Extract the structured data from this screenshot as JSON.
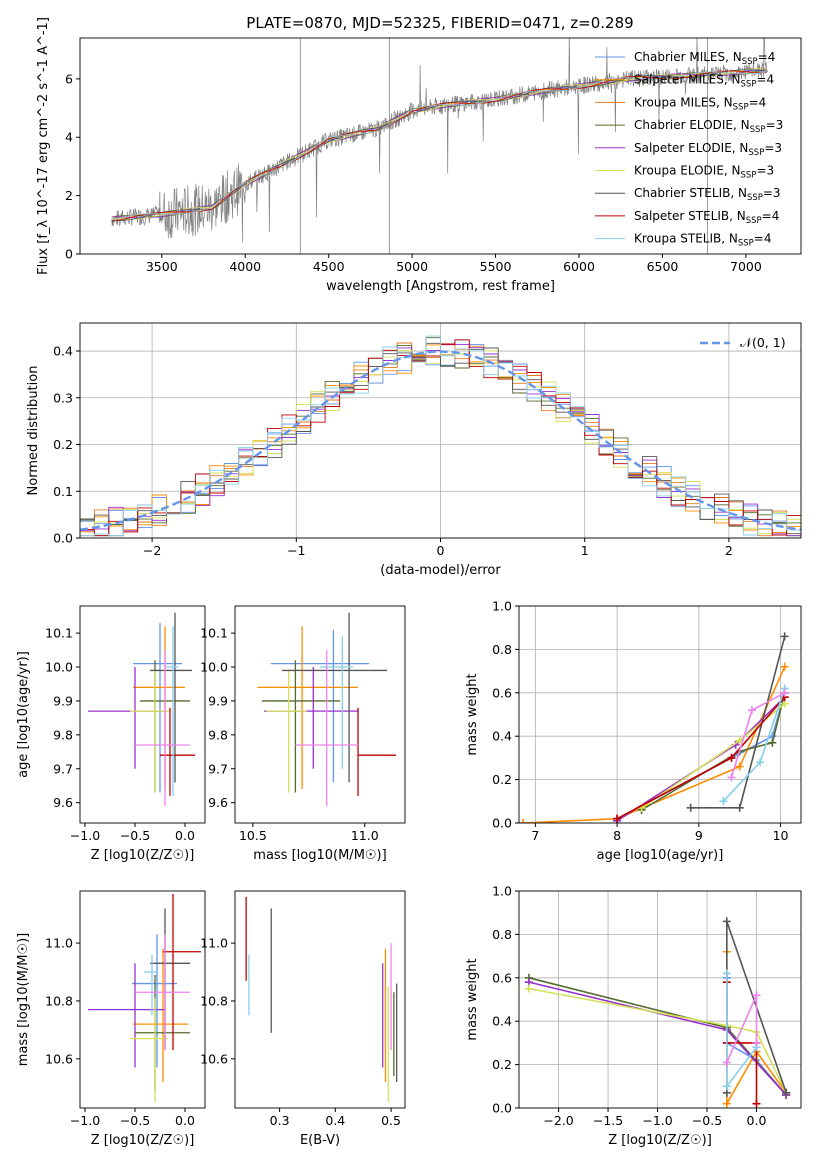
{
  "figure_title": "PLATE=0870, MJD=52325, FIBERID=0471, z=0.289",
  "colors": {
    "Chabrier MILES": "#6495ed",
    "Salpeter MILES": "#ff8c00",
    "Kroupa MILES": "#e07b22",
    "Chabrier ELODIE": "#556b2f",
    "Salpeter ELODIE": "#9932cc",
    "Kroupa ELODIE": "#d4e157",
    "Chabrier STELIB": "#555555",
    "Salpeter STELIB": "#c00000",
    "Kroupa STELIB": "#87ceeb",
    "pink": "#ee82ee",
    "data": "#808080",
    "gauss": "#6495ed"
  },
  "chart_data": [
    {
      "type": "line",
      "title": "PLATE=0870, MJD=52325, FIBERID=0471, z=0.289",
      "xlabel": "wavelength [Angstrom, rest frame]",
      "ylabel": "Flux [f_λ 10^-17 erg cm^-2 s^-1 A^-1]",
      "xlim": [
        3010,
        7330
      ],
      "ylim": [
        0,
        7.4
      ],
      "xticks": [
        3500,
        4000,
        4500,
        5000,
        5500,
        6000,
        6500,
        7000
      ],
      "yticks": [
        0,
        2,
        4,
        6
      ],
      "legend_position": "top-right",
      "legend": [
        "Chabrier MILES, N_SSP=4",
        "Salpeter MILES, N_SSP=4",
        "Kroupa MILES, N_SSP=4",
        "Chabrier ELODIE, N_SSP=3",
        "Salpeter ELODIE, N_SSP=3",
        "Kroupa ELODIE, N_SSP=3",
        "Chabrier STELIB, N_SSP=3",
        "Salpeter STELIB, N_SSP=4",
        "Kroupa STELIB, N_SSP=4"
      ],
      "continuum": {
        "x": [
          3200,
          3500,
          3800,
          4000,
          4200,
          4500,
          4800,
          5000,
          5200,
          5500,
          5800,
          6000,
          6300,
          6600,
          6900,
          7130
        ],
        "y": [
          1.2,
          1.35,
          1.6,
          2.4,
          3.0,
          3.9,
          4.3,
          4.9,
          5.1,
          5.3,
          5.6,
          5.75,
          6.0,
          6.1,
          6.2,
          6.3
        ]
      }
    },
    {
      "type": "bar",
      "xlabel": "(data-model)/error",
      "ylabel": "Normed distribution",
      "xlim": [
        -2.5,
        2.5
      ],
      "ylim": [
        0,
        0.46
      ],
      "xticks": [
        -2,
        -1,
        0,
        1,
        2
      ],
      "yticks": [
        0.0,
        0.1,
        0.2,
        0.3,
        0.4
      ],
      "legend": [
        "𝒩(0, 1)"
      ],
      "gaussian": {
        "mean": 0,
        "sigma": 1
      }
    },
    {
      "type": "scatter",
      "xlabel": "Z [log10(Z/Z☉)]",
      "ylabel": "age  [log10(age/yr)]",
      "xlim": [
        -1.05,
        0.2
      ],
      "ylim": [
        9.54,
        10.18
      ],
      "xticks": [
        -1.0,
        -0.5,
        0.0
      ],
      "yticks": [
        9.6,
        9.7,
        9.8,
        9.9,
        10.0,
        10.1
      ],
      "points": [
        {
          "x": -0.25,
          "y": 10.01,
          "xerr": [
            0.27,
            0.22
          ],
          "yerr": [
            0.38,
            0.12
          ],
          "c": "#6495ed"
        },
        {
          "x": -0.2,
          "y": 9.94,
          "xerr": [
            0.32,
            0.2
          ],
          "yerr": [
            0.3,
            0.18
          ],
          "c": "#ff8c00"
        },
        {
          "x": -0.3,
          "y": 9.9,
          "xerr": [
            0.15,
            0.35
          ],
          "yerr": [
            0.27,
            0.12
          ],
          "c": "#556b2f"
        },
        {
          "x": -0.5,
          "y": 9.87,
          "xerr": [
            0.47,
            0.32
          ],
          "yerr": [
            0.17,
            0.13
          ],
          "c": "#9932cc"
        },
        {
          "x": -0.3,
          "y": 9.87,
          "xerr": [
            0.25,
            0.15
          ],
          "yerr": [
            0.24,
            0.12
          ],
          "c": "#d4e157"
        },
        {
          "x": -0.1,
          "y": 9.99,
          "xerr": [
            0.25,
            0.17
          ],
          "yerr": [
            0.33,
            0.17
          ],
          "c": "#555555"
        },
        {
          "x": -0.15,
          "y": 9.74,
          "xerr": [
            0.1,
            0.25
          ],
          "yerr": [
            0.12,
            0.14
          ],
          "c": "#c00000"
        },
        {
          "x": -0.12,
          "y": 10.0,
          "xerr": [
            0.08,
            0.05
          ],
          "yerr": [
            0.38,
            0.12
          ],
          "c": "#87ceeb"
        },
        {
          "x": -0.2,
          "y": 9.77,
          "xerr": [
            0.3,
            0.25
          ],
          "yerr": [
            0.18,
            0.28
          ],
          "c": "#ee82ee"
        }
      ]
    },
    {
      "type": "scatter",
      "xlabel": "mass [log10(M/M☉)]",
      "ylabel": "",
      "xlim": [
        10.42,
        11.18
      ],
      "ylim": [
        9.54,
        10.18
      ],
      "xticks": [
        10.5,
        11.0
      ],
      "yticks": [
        9.6,
        9.7,
        9.8,
        9.9,
        10.0,
        10.1
      ],
      "points": [
        {
          "x": 10.86,
          "y": 10.01,
          "xerr": [
            0.28,
            0.16
          ],
          "yerr": [
            0.35,
            0.1
          ],
          "c": "#6495ed"
        },
        {
          "x": 10.72,
          "y": 9.94,
          "xerr": [
            0.2,
            0.25
          ],
          "yerr": [
            0.3,
            0.18
          ],
          "c": "#ff8c00"
        },
        {
          "x": 10.69,
          "y": 9.9,
          "xerr": [
            0.15,
            0.2
          ],
          "yerr": [
            0.27,
            0.12
          ],
          "c": "#556b2f"
        },
        {
          "x": 10.77,
          "y": 9.87,
          "xerr": [
            0.22,
            0.2
          ],
          "yerr": [
            0.17,
            0.13
          ],
          "c": "#9932cc"
        },
        {
          "x": 10.66,
          "y": 9.87,
          "xerr": [
            0.1,
            0.08
          ],
          "yerr": [
            0.24,
            0.12
          ],
          "c": "#d4e157"
        },
        {
          "x": 10.93,
          "y": 9.99,
          "xerr": [
            0.3,
            0.17
          ],
          "yerr": [
            0.33,
            0.17
          ],
          "c": "#555555"
        },
        {
          "x": 10.97,
          "y": 9.74,
          "xerr": [
            0.0,
            0.17
          ],
          "yerr": [
            0.12,
            0.14
          ],
          "c": "#c00000"
        },
        {
          "x": 10.9,
          "y": 10.0,
          "xerr": [
            0.1,
            0.05
          ],
          "yerr": [
            0.3,
            0.09
          ],
          "c": "#87ceeb"
        },
        {
          "x": 10.83,
          "y": 9.77,
          "xerr": [
            0.14,
            0.14
          ],
          "yerr": [
            0.18,
            0.28
          ],
          "c": "#ee82ee"
        }
      ]
    },
    {
      "type": "line",
      "xlabel": "age  [log10(age/yr)]",
      "ylabel": "mass weight",
      "xlim": [
        6.8,
        10.25
      ],
      "ylim": [
        0,
        1.0
      ],
      "xticks": [
        7,
        8,
        9,
        10
      ],
      "yticks": [
        0.0,
        0.2,
        0.4,
        0.6,
        0.8,
        1.0
      ],
      "series": [
        {
          "c": "#6495ed",
          "x": [
            8.0,
            9.4,
            9.9,
            10.05
          ],
          "y": [
            0.02,
            0.3,
            0.4,
            0.6
          ]
        },
        {
          "c": "#ff8c00",
          "x": [
            6.85,
            8.0,
            9.5,
            10.05
          ],
          "y": [
            0.0,
            0.02,
            0.26,
            0.72
          ]
        },
        {
          "c": "#556b2f",
          "x": [
            8.3,
            9.5,
            9.9,
            10.05
          ],
          "y": [
            0.06,
            0.33,
            0.37,
            0.6
          ]
        },
        {
          "c": "#9932cc",
          "x": [
            8.0,
            9.45,
            10.05
          ],
          "y": [
            0.01,
            0.36,
            0.58
          ]
        },
        {
          "c": "#d4e157",
          "x": [
            8.3,
            9.5,
            10.05
          ],
          "y": [
            0.07,
            0.38,
            0.55
          ]
        },
        {
          "c": "#555555",
          "x": [
            8.9,
            9.5,
            10.05
          ],
          "y": [
            0.07,
            0.07,
            0.86
          ]
        },
        {
          "c": "#c00000",
          "x": [
            8.0,
            9.4,
            10.05
          ],
          "y": [
            0.02,
            0.3,
            0.58
          ]
        },
        {
          "c": "#87ceeb",
          "x": [
            9.3,
            9.75,
            10.05
          ],
          "y": [
            0.1,
            0.28,
            0.62
          ]
        },
        {
          "c": "#ee82ee",
          "x": [
            9.4,
            9.65,
            10.05
          ],
          "y": [
            0.21,
            0.52,
            0.6
          ]
        }
      ]
    },
    {
      "type": "scatter",
      "xlabel": "Z [log10(Z/Z☉)]",
      "ylabel": "mass [log10(M/M☉)]",
      "xlim": [
        -1.05,
        0.2
      ],
      "ylim": [
        10.43,
        11.18
      ],
      "xticks": [
        -1.0,
        -0.5,
        0.0
      ],
      "yticks": [
        10.6,
        10.8,
        11.0
      ],
      "points": [
        {
          "x": -0.28,
          "y": 10.86,
          "xerr": [
            0.25,
            0.2
          ],
          "yerr": [
            0.29,
            0.17
          ],
          "c": "#6495ed"
        },
        {
          "x": -0.22,
          "y": 10.72,
          "xerr": [
            0.3,
            0.25
          ],
          "yerr": [
            0.2,
            0.26
          ],
          "c": "#ff8c00"
        },
        {
          "x": -0.3,
          "y": 10.69,
          "xerr": [
            0.2,
            0.35
          ],
          "yerr": [
            0.2,
            0.2
          ],
          "c": "#556b2f"
        },
        {
          "x": -0.5,
          "y": 10.77,
          "xerr": [
            0.47,
            0.3
          ],
          "yerr": [
            0.2,
            0.16
          ],
          "c": "#9932cc"
        },
        {
          "x": -0.3,
          "y": 10.67,
          "xerr": [
            0.25,
            0.13
          ],
          "yerr": [
            0.22,
            0.14
          ],
          "c": "#d4e157"
        },
        {
          "x": -0.2,
          "y": 10.93,
          "xerr": [
            0.15,
            0.25
          ],
          "yerr": [
            0.3,
            0.19
          ],
          "c": "#555555"
        },
        {
          "x": -0.12,
          "y": 10.97,
          "xerr": [
            0.1,
            0.28
          ],
          "yerr": [
            0.34,
            0.2
          ],
          "c": "#c00000"
        },
        {
          "x": -0.33,
          "y": 10.9,
          "xerr": [
            0.08,
            0.05
          ],
          "yerr": [
            0.15,
            0.06
          ],
          "c": "#87ceeb"
        },
        {
          "x": -0.2,
          "y": 10.83,
          "xerr": [
            0.3,
            0.25
          ],
          "yerr": [
            0.2,
            0.2
          ],
          "c": "#ee82ee"
        }
      ]
    },
    {
      "type": "scatter",
      "xlabel": "E(B-V)",
      "ylabel": "",
      "xlim": [
        0.22,
        0.525
      ],
      "ylim": [
        10.43,
        11.18
      ],
      "xticks": [
        0.3,
        0.4,
        0.5
      ],
      "yticks": [
        10.6,
        10.8,
        11.0
      ],
      "points": [
        {
          "x": 0.245,
          "y": 10.9,
          "yerr": [
            0.15,
            0.06
          ],
          "c": "#87ceeb"
        },
        {
          "x": 0.24,
          "y": 10.97,
          "yerr": [
            0.1,
            0.19
          ],
          "c": "#c00000"
        },
        {
          "x": 0.285,
          "y": 10.93,
          "yerr": [
            0.24,
            0.19
          ],
          "c": "#555555"
        },
        {
          "x": 0.485,
          "y": 10.77,
          "yerr": [
            0.2,
            0.16
          ],
          "c": "#9932cc"
        },
        {
          "x": 0.49,
          "y": 10.72,
          "yerr": [
            0.2,
            0.26
          ],
          "c": "#ff8c00"
        },
        {
          "x": 0.495,
          "y": 10.67,
          "yerr": [
            0.22,
            0.18
          ],
          "c": "#d4e157"
        },
        {
          "x": 0.5,
          "y": 10.83,
          "yerr": [
            0.2,
            0.17
          ],
          "c": "#ee82ee"
        },
        {
          "x": 0.505,
          "y": 10.69,
          "yerr": [
            0.15,
            0.14
          ],
          "c": "#556b2f"
        },
        {
          "x": 0.51,
          "y": 10.7,
          "yerr": [
            0.18,
            0.16
          ],
          "c": "#555555"
        }
      ]
    },
    {
      "type": "line",
      "xlabel": "Z [log10(Z/Z☉)]",
      "ylabel": "mass weight",
      "xlim": [
        -2.4,
        0.45
      ],
      "ylim": [
        0,
        1.0
      ],
      "xticks": [
        -2.0,
        -1.5,
        -1.0,
        -0.5,
        0.0
      ],
      "yticks": [
        0.0,
        0.2,
        0.4,
        0.6,
        0.8,
        1.0
      ],
      "series": [
        {
          "c": "#6495ed",
          "x": [
            -0.3,
            -0.3,
            0.0,
            0.3
          ],
          "y": [
            0.6,
            0.3,
            0.22,
            0.06
          ]
        },
        {
          "c": "#ff8c00",
          "x": [
            -0.3,
            -0.3,
            0.0,
            0.3
          ],
          "y": [
            0.72,
            0.02,
            0.26,
            0.07
          ]
        },
        {
          "c": "#556b2f",
          "x": [
            -2.3,
            -0.3,
            0.3
          ],
          "y": [
            0.6,
            0.37,
            0.06
          ]
        },
        {
          "c": "#9932cc",
          "x": [
            -2.3,
            -0.3,
            0.3
          ],
          "y": [
            0.58,
            0.36,
            0.06
          ]
        },
        {
          "c": "#d4e157",
          "x": [
            -2.3,
            -0.3,
            0.0,
            0.3
          ],
          "y": [
            0.55,
            0.38,
            0.35,
            0.07
          ]
        },
        {
          "c": "#555555",
          "x": [
            -0.3,
            -0.3,
            0.3
          ],
          "y": [
            0.07,
            0.86,
            0.07
          ]
        },
        {
          "c": "#c00000",
          "x": [
            -0.3,
            -0.3,
            0.0,
            0.0
          ],
          "y": [
            0.58,
            0.3,
            0.3,
            0.02
          ]
        },
        {
          "c": "#87ceeb",
          "x": [
            -0.3,
            -0.3,
            0.0
          ],
          "y": [
            0.62,
            0.1,
            0.28
          ]
        },
        {
          "c": "#ee82ee",
          "x": [
            -0.3,
            0.0,
            0.0
          ],
          "y": [
            0.21,
            0.52,
            0.3
          ]
        }
      ]
    }
  ]
}
